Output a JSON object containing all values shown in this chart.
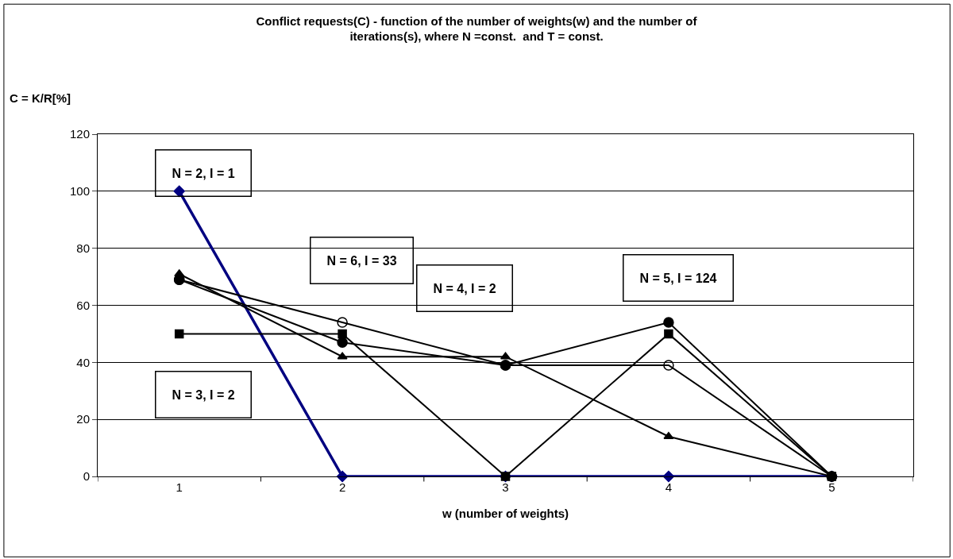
{
  "chart_data": {
    "type": "line",
    "title": "Conflict requests(C) - function of the number of weights(w) and the number of iterations(s), where N =const.  and T = const.",
    "xlabel": "w (number of weights)",
    "ylabel": "C = K/R[%]",
    "categories": [
      "1",
      "2",
      "3",
      "4",
      "5"
    ],
    "series": [
      {
        "color": "#000080",
        "marker": "diamond",
        "values": [
          100,
          0,
          0,
          0,
          0
        ]
      },
      {
        "color": "#000000",
        "marker": "square",
        "values": [
          50,
          50,
          0,
          50,
          0
        ]
      },
      {
        "color": "#000000",
        "marker": "triangle",
        "values": [
          71,
          42,
          42,
          14,
          0
        ]
      },
      {
        "color": "#000000",
        "marker": "circle-open",
        "values": [
          69,
          54,
          39,
          39,
          0
        ]
      },
      {
        "color": "#000000",
        "marker": "circle",
        "values": [
          69,
          47,
          39,
          54,
          0
        ]
      }
    ],
    "ylim": [
      0,
      120
    ],
    "yticks": [
      0,
      20,
      40,
      60,
      80,
      100,
      120
    ],
    "grid": "y",
    "line_style": "solid",
    "annotations": [
      "N = 2, I = 1",
      "N = 6, I = 33",
      "N = 4, I = 2",
      "N = 5, I = 124",
      "N = 3, I = 2"
    ]
  }
}
